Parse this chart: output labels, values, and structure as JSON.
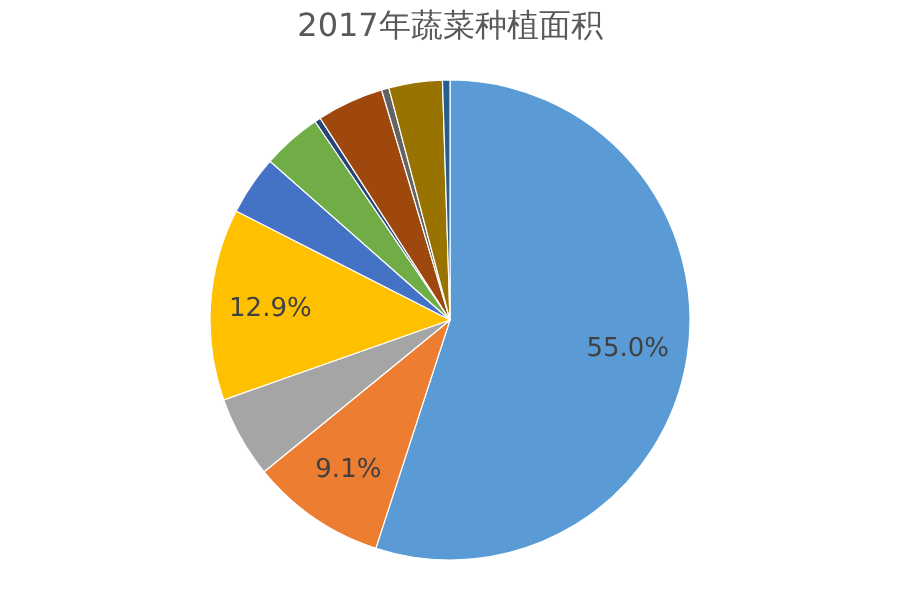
{
  "chart_data": {
    "type": "pie",
    "title": "2017年蔬菜种植面积",
    "categories": [
      null,
      null,
      null,
      null,
      null,
      null,
      null,
      null,
      null,
      null,
      null
    ],
    "values": [
      55.0,
      9.1,
      5.5,
      12.9,
      4.0,
      4.0,
      0.4,
      4.5,
      0.5,
      3.6,
      0.5
    ],
    "value_labels": [
      "55.0%",
      "9.1%",
      null,
      "12.9%",
      null,
      null,
      null,
      null,
      null,
      null,
      null
    ],
    "colors": [
      "#5b9bd5",
      "#ed7d31",
      "#a5a5a5",
      "#ffc000",
      "#4472c4",
      "#70ad47",
      "#264478",
      "#9e480e",
      "#636363",
      "#997300",
      "#255e91"
    ],
    "legend": false
  }
}
